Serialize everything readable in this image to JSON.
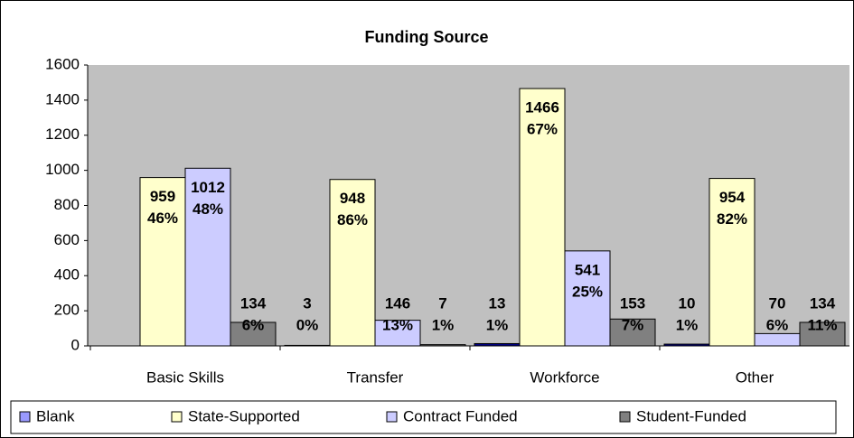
{
  "chart_data": {
    "type": "bar",
    "title": "Funding Source",
    "categories": [
      "Basic Skills",
      "Transfer",
      "Workforce",
      "Other"
    ],
    "series": [
      {
        "name": "Blank",
        "color": "#000080",
        "legend_color": "#9999ff",
        "values": [
          null,
          3,
          13,
          10
        ],
        "share_labels": [
          null,
          "0%",
          "1%",
          "1%"
        ]
      },
      {
        "name": "State-Supported",
        "color": "#ffffcc",
        "values": [
          959,
          948,
          1466,
          954
        ],
        "share_labels": [
          "46%",
          "86%",
          "67%",
          "82%"
        ]
      },
      {
        "name": "Contract Funded",
        "color": "#ccccff",
        "values": [
          1012,
          146,
          541,
          70
        ],
        "share_labels": [
          "48%",
          "13%",
          "25%",
          "6%"
        ]
      },
      {
        "name": "Student-Funded",
        "color": "#808080",
        "values": [
          134,
          7,
          153,
          134
        ],
        "share_labels": [
          "6%",
          "1%",
          "7%",
          "11%"
        ]
      }
    ],
    "ylim": [
      0,
      1600
    ],
    "yticks": [
      0,
      200,
      400,
      600,
      800,
      1000,
      1200,
      1400,
      1600
    ],
    "grid": false,
    "legend": "bottom"
  }
}
